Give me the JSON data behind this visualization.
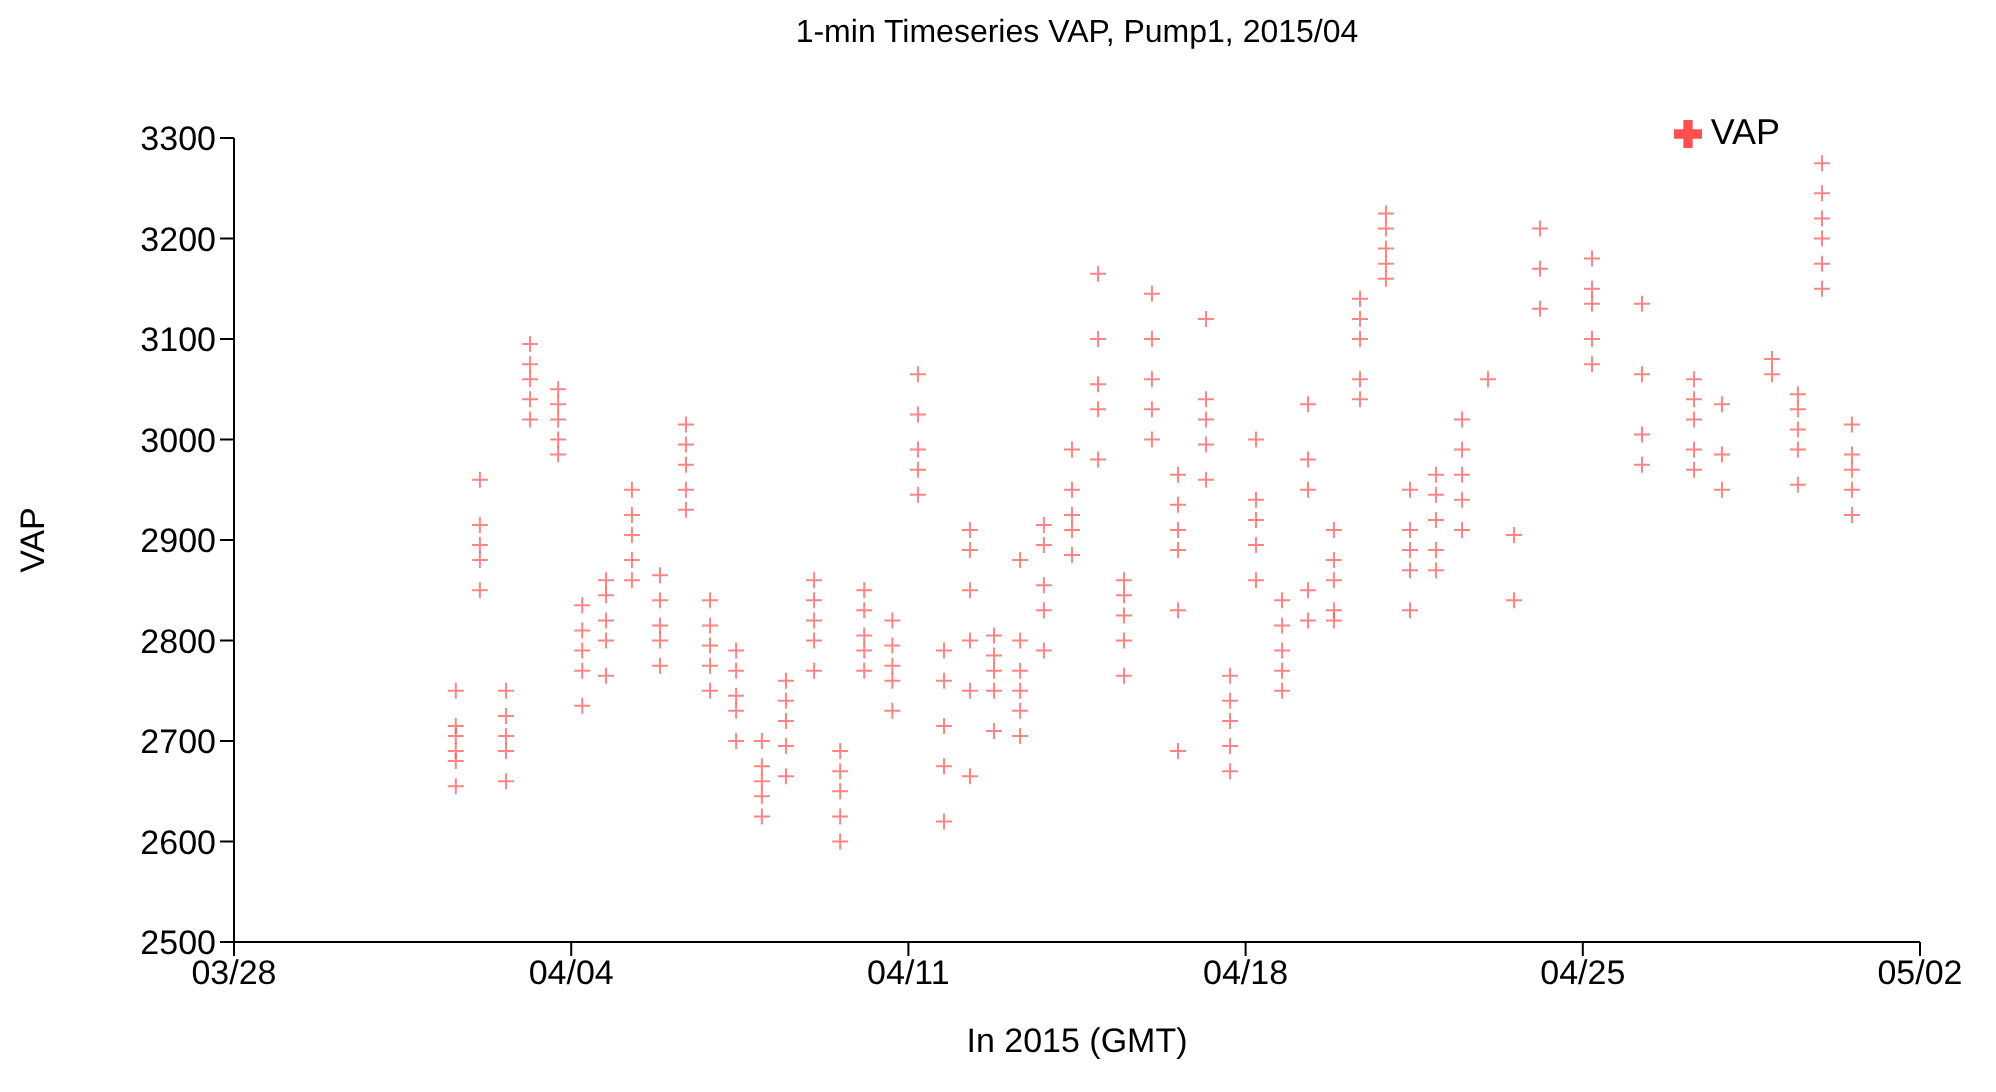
{
  "chart_data": {
    "type": "scatter",
    "title": "1-min Timeseries VAP, Pump1, 2015/04",
    "xlabel": "In 2015 (GMT)",
    "ylabel": "VAP",
    "xlim": [
      "2015-03-28",
      "2015-05-02"
    ],
    "xticks": [
      {
        "value": "2015-03-28",
        "label": "03/28"
      },
      {
        "value": "2015-04-04",
        "label": "04/04"
      },
      {
        "value": "2015-04-11",
        "label": "04/11"
      },
      {
        "value": "2015-04-18",
        "label": "04/18"
      },
      {
        "value": "2015-04-25",
        "label": "04/25"
      },
      {
        "value": "2015-05-02",
        "label": "05/02"
      }
    ],
    "ylim": [
      2500,
      3300
    ],
    "yticks": [
      2500,
      2600,
      2700,
      2800,
      2900,
      3000,
      3100,
      3200,
      3300
    ],
    "grid": false,
    "legend": "top right",
    "marker": "cross",
    "series": [
      {
        "name": "VAP",
        "color": "#ff5050",
        "x": [
          "2015-04-01T14:30",
          "2015-04-01T14:30",
          "2015-04-01T14:30",
          "2015-04-01T14:30",
          "2015-04-01T14:30",
          "2015-04-01T14:30",
          "2015-04-02T02:30",
          "2015-04-02T02:30",
          "2015-04-02T02:30",
          "2015-04-02T02:30",
          "2015-04-02T02:30",
          "2015-04-02T15:30",
          "2015-04-02T15:30",
          "2015-04-02T15:30",
          "2015-04-02T15:30",
          "2015-04-02T15:30",
          "2015-04-03T03:30",
          "2015-04-03T03:30",
          "2015-04-03T03:30",
          "2015-04-03T03:30",
          "2015-04-03T03:30",
          "2015-04-03T17:30",
          "2015-04-03T17:30",
          "2015-04-03T17:30",
          "2015-04-03T17:30",
          "2015-04-03T17:30",
          "2015-04-04T05:30",
          "2015-04-04T05:30",
          "2015-04-04T05:30",
          "2015-04-04T05:30",
          "2015-04-04T05:30",
          "2015-04-04T17:20",
          "2015-04-04T17:20",
          "2015-04-04T17:20",
          "2015-04-04T17:20",
          "2015-04-04T17:20",
          "2015-04-05T06:15",
          "2015-04-05T06:15",
          "2015-04-05T06:15",
          "2015-04-05T06:15",
          "2015-04-05T06:15",
          "2015-04-05T20:15",
          "2015-04-05T20:15",
          "2015-04-05T20:15",
          "2015-04-05T20:15",
          "2015-04-05T20:15",
          "2015-04-06T09:10",
          "2015-04-06T09:10",
          "2015-04-06T09:10",
          "2015-04-06T09:10",
          "2015-04-06T09:10",
          "2015-04-06T21:10",
          "2015-04-06T21:10",
          "2015-04-06T21:10",
          "2015-04-06T21:10",
          "2015-04-06T21:10",
          "2015-04-07T10:10",
          "2015-04-07T10:10",
          "2015-04-07T10:10",
          "2015-04-07T10:10",
          "2015-04-07T10:10",
          "2015-04-07T23:00",
          "2015-04-07T23:00",
          "2015-04-07T23:00",
          "2015-04-07T23:00",
          "2015-04-07T23:00",
          "2015-04-08T11:00",
          "2015-04-08T11:00",
          "2015-04-08T11:00",
          "2015-04-08T11:00",
          "2015-04-08T11:00",
          "2015-04-09T01:00",
          "2015-04-09T01:00",
          "2015-04-09T01:00",
          "2015-04-09T01:00",
          "2015-04-09T01:00",
          "2015-04-09T14:00",
          "2015-04-09T14:00",
          "2015-04-09T14:00",
          "2015-04-09T14:00",
          "2015-04-09T14:00",
          "2015-04-10T02:00",
          "2015-04-10T02:00",
          "2015-04-10T02:00",
          "2015-04-10T02:00",
          "2015-04-10T02:00",
          "2015-04-10T16:00",
          "2015-04-10T16:00",
          "2015-04-10T16:00",
          "2015-04-10T16:00",
          "2015-04-10T16:00",
          "2015-04-11T04:45",
          "2015-04-11T04:45",
          "2015-04-11T04:45",
          "2015-04-11T04:45",
          "2015-04-11T04:45",
          "2015-04-11T17:45",
          "2015-04-11T17:45",
          "2015-04-11T17:45",
          "2015-04-11T17:45",
          "2015-04-11T17:45",
          "2015-04-12T06:40",
          "2015-04-12T06:40",
          "2015-04-12T06:40",
          "2015-04-12T06:40",
          "2015-04-12T06:40",
          "2015-04-12T06:40",
          "2015-04-12T18:40",
          "2015-04-12T18:40",
          "2015-04-12T18:40",
          "2015-04-12T18:40",
          "2015-04-12T18:40",
          "2015-04-13T07:40",
          "2015-04-13T07:40",
          "2015-04-13T07:40",
          "2015-04-13T07:40",
          "2015-04-13T07:40",
          "2015-04-13T07:40",
          "2015-04-13T19:30",
          "2015-04-13T19:30",
          "2015-04-13T19:30",
          "2015-04-13T19:30",
          "2015-04-13T19:30",
          "2015-04-14T09:30",
          "2015-04-14T09:30",
          "2015-04-14T09:30",
          "2015-04-14T09:30",
          "2015-04-14T09:30",
          "2015-04-14T22:30",
          "2015-04-14T22:30",
          "2015-04-14T22:30",
          "2015-04-14T22:30",
          "2015-04-14T22:30",
          "2015-04-15T11:25",
          "2015-04-15T11:25",
          "2015-04-15T11:25",
          "2015-04-15T11:25",
          "2015-04-15T11:25",
          "2015-04-16T01:20",
          "2015-04-16T01:20",
          "2015-04-16T01:20",
          "2015-04-16T01:20",
          "2015-04-16T01:20",
          "2015-04-16T14:20",
          "2015-04-16T14:20",
          "2015-04-16T14:20",
          "2015-04-16T14:20",
          "2015-04-16T14:20",
          "2015-04-16T14:20",
          "2015-04-17T04:15",
          "2015-04-17T04:15",
          "2015-04-17T04:15",
          "2015-04-17T04:15",
          "2015-04-17T04:15",
          "2015-04-17T16:15",
          "2015-04-17T16:15",
          "2015-04-17T16:15",
          "2015-04-17T16:15",
          "2015-04-17T16:15",
          "2015-04-18T05:10",
          "2015-04-18T05:10",
          "2015-04-18T05:10",
          "2015-04-18T05:10",
          "2015-04-18T05:10",
          "2015-04-18T18:10",
          "2015-04-18T18:10",
          "2015-04-18T18:10",
          "2015-04-18T18:10",
          "2015-04-18T18:10",
          "2015-04-19T07:05",
          "2015-04-19T07:05",
          "2015-04-19T07:05",
          "2015-04-19T07:05",
          "2015-04-19T07:05",
          "2015-04-19T20:00",
          "2015-04-19T20:00",
          "2015-04-19T20:00",
          "2015-04-19T20:00",
          "2015-04-19T20:00",
          "2015-04-20T09:00",
          "2015-04-20T09:00",
          "2015-04-20T09:00",
          "2015-04-20T09:00",
          "2015-04-20T09:00",
          "2015-04-20T21:55",
          "2015-04-20T21:55",
          "2015-04-20T21:55",
          "2015-04-20T21:55",
          "2015-04-20T21:55",
          "2015-04-21T09:55",
          "2015-04-21T09:55",
          "2015-04-21T09:55",
          "2015-04-21T09:55",
          "2015-04-21T09:55",
          "2015-04-21T22:50",
          "2015-04-21T22:50",
          "2015-04-21T22:50",
          "2015-04-21T22:50",
          "2015-04-21T22:50",
          "2015-04-22T11:50",
          "2015-04-22T11:50",
          "2015-04-22T11:50",
          "2015-04-22T11:50",
          "2015-04-22T11:50",
          "2015-04-23T00:45",
          "2015-04-23T13:45",
          "2015-04-23T13:45",
          "2015-04-24T02:40",
          "2015-04-24T02:40",
          "2015-04-24T02:40",
          "2015-04-25T04:35",
          "2015-04-25T04:35",
          "2015-04-25T04:35",
          "2015-04-25T04:35",
          "2015-04-25T04:35",
          "2015-04-26T05:30",
          "2015-04-26T05:30",
          "2015-04-26T05:30",
          "2015-04-26T05:30",
          "2015-04-27T07:25",
          "2015-04-27T07:25",
          "2015-04-27T07:25",
          "2015-04-27T07:25",
          "2015-04-27T07:25",
          "2015-04-27T21:20",
          "2015-04-27T21:20",
          "2015-04-27T21:20",
          "2015-04-28T22:15",
          "2015-04-28T22:15",
          "2015-04-29T11:10",
          "2015-04-29T11:10",
          "2015-04-29T11:10",
          "2015-04-29T11:10",
          "2015-04-29T11:10",
          "2015-04-29T23:10",
          "2015-04-29T23:10",
          "2015-04-29T23:10",
          "2015-04-29T23:10",
          "2015-04-29T23:10",
          "2015-04-29T23:10",
          "2015-04-30T14:05",
          "2015-04-30T14:05",
          "2015-04-30T14:05",
          "2015-04-30T14:05",
          "2015-04-30T14:05"
        ],
        "values": [
          2655,
          2680,
          2690,
          2705,
          2715,
          2750,
          2850,
          2880,
          2895,
          2915,
          2960,
          2660,
          2690,
          2705,
          2725,
          2750,
          3020,
          3040,
          3060,
          3075,
          3095,
          2985,
          3000,
          3020,
          3035,
          3050,
          2735,
          2770,
          2790,
          2810,
          2835,
          2765,
          2800,
          2820,
          2845,
          2860,
          2860,
          2880,
          2905,
          2925,
          2950,
          2775,
          2800,
          2815,
          2840,
          2865,
          2930,
          2950,
          2975,
          2995,
          3015,
          2750,
          2775,
          2795,
          2815,
          2840,
          2700,
          2730,
          2745,
          2770,
          2790,
          2625,
          2645,
          2660,
          2675,
          2700,
          2665,
          2695,
          2720,
          2740,
          2760,
          2770,
          2800,
          2820,
          2840,
          2860,
          2600,
          2625,
          2650,
          2670,
          2690,
          2770,
          2790,
          2805,
          2830,
          2850,
          2730,
          2760,
          2775,
          2795,
          2820,
          2945,
          2970,
          2990,
          3025,
          3065,
          2620,
          2675,
          2715,
          2760,
          2790,
          2665,
          2750,
          2800,
          2850,
          2890,
          2910,
          2710,
          2750,
          2770,
          2785,
          2805,
          2705,
          2730,
          2750,
          2770,
          2800,
          2880,
          2790,
          2830,
          2855,
          2895,
          2915,
          2885,
          2910,
          2925,
          2950,
          2990,
          2980,
          3030,
          3055,
          3100,
          3165,
          2765,
          2800,
          2825,
          2845,
          2860,
          3000,
          3030,
          3060,
          3100,
          3145,
          2690,
          2830,
          2890,
          2910,
          2935,
          2965,
          2960,
          2995,
          3020,
          3040,
          3120,
          2670,
          2695,
          2720,
          2740,
          2765,
          2860,
          2895,
          2920,
          2940,
          3000,
          2750,
          2770,
          2790,
          2815,
          2840,
          2820,
          2850,
          2950,
          2980,
          3035,
          2820,
          2830,
          2860,
          2880,
          2910,
          3040,
          3060,
          3100,
          3120,
          3140,
          3160,
          3175,
          3190,
          3210,
          3225,
          2830,
          2870,
          2890,
          2910,
          2950,
          2870,
          2890,
          2920,
          2945,
          2965,
          2910,
          2940,
          2965,
          2990,
          3020,
          3060,
          2840,
          2905,
          3130,
          3170,
          3210,
          3075,
          3100,
          3135,
          3150,
          3180,
          2975,
          3005,
          3065,
          3135,
          2970,
          2990,
          3020,
          3040,
          3060,
          2950,
          2985,
          3035,
          3065,
          3080,
          2955,
          2990,
          3010,
          3030,
          3045,
          3150,
          3175,
          3200,
          3220,
          3245,
          3275,
          2925,
          2950,
          2970,
          2985,
          3015
        ]
      }
    ]
  }
}
